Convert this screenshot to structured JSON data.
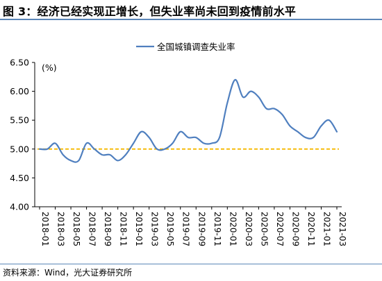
{
  "header": {
    "title": "图 3：经济已经实现正增长，但失业率尚未回到疫情前水平"
  },
  "footer": {
    "source": "资料来源：Wind，光大证券研究所"
  },
  "colors": {
    "series": "#4f7fbf",
    "reference": "#f5b800",
    "rule": "#5a86b8",
    "axis": "#000000"
  },
  "chart_data": {
    "type": "line",
    "title": "",
    "xlabel": "",
    "ylabel": "(%)",
    "unit_label": "(%)",
    "ylim": [
      4.0,
      6.5
    ],
    "yticks": [
      "4.00",
      "4.50",
      "5.00",
      "5.50",
      "6.00",
      "6.50"
    ],
    "ytick_values": [
      4.0,
      4.5,
      5.0,
      5.5,
      6.0,
      6.5
    ],
    "grid": false,
    "legend": "top-center",
    "x": [
      "2018-01",
      "2018-02",
      "2018-03",
      "2018-04",
      "2018-05",
      "2018-06",
      "2018-07",
      "2018-08",
      "2018-09",
      "2018-10",
      "2018-11",
      "2018-12",
      "2019-01",
      "2019-02",
      "2019-03",
      "2019-04",
      "2019-05",
      "2019-06",
      "2019-07",
      "2019-08",
      "2019-09",
      "2019-10",
      "2019-11",
      "2019-12",
      "2020-01",
      "2020-02",
      "2020-03",
      "2020-04",
      "2020-05",
      "2020-06",
      "2020-07",
      "2020-08",
      "2020-09",
      "2020-10",
      "2020-11",
      "2020-12",
      "2021-01",
      "2021-02",
      "2021-03"
    ],
    "xtick_labels": [
      "2018-01",
      "2018-03",
      "2018-05",
      "2018-07",
      "2018-09",
      "2018-11",
      "2019-01",
      "2019-03",
      "2019-05",
      "2019-07",
      "2019-09",
      "2019-11",
      "2020-01",
      "2020-03",
      "2020-05",
      "2020-07",
      "2020-09",
      "2020-11",
      "2021-01",
      "2021-03"
    ],
    "series": [
      {
        "name": "全国城镇调查失业率",
        "values": [
          5.0,
          5.0,
          5.1,
          4.9,
          4.8,
          4.8,
          5.1,
          5.0,
          4.9,
          4.9,
          4.8,
          4.9,
          5.1,
          5.3,
          5.2,
          5.0,
          5.0,
          5.1,
          5.3,
          5.2,
          5.2,
          5.1,
          5.1,
          5.2,
          5.8,
          6.2,
          5.9,
          6.0,
          5.9,
          5.7,
          5.7,
          5.6,
          5.4,
          5.3,
          5.2,
          5.2,
          5.4,
          5.5,
          5.3
        ]
      }
    ],
    "reference_line": {
      "y": 5.0,
      "style": "dashed"
    }
  }
}
